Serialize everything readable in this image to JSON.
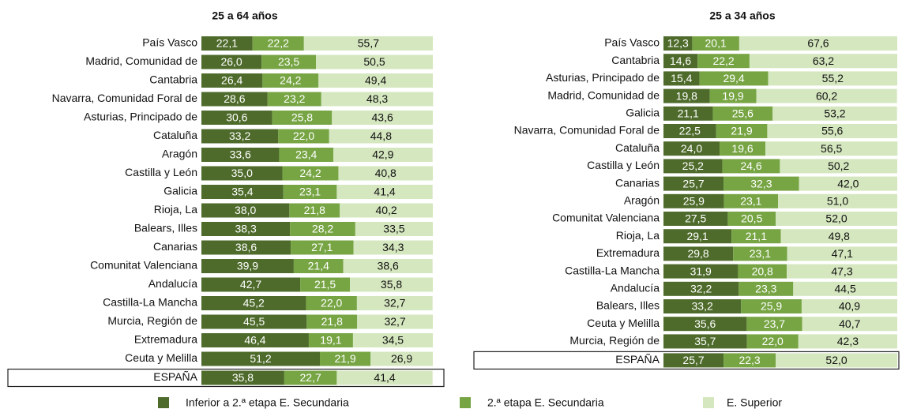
{
  "chart_data": [
    {
      "type": "bar",
      "orientation": "horizontal",
      "stacked": true,
      "title": "25 a 64 años",
      "xlim": [
        0,
        100
      ],
      "categories": [
        "País Vasco",
        "Madrid, Comunidad de",
        "Cantabria",
        "Navarra, Comunidad Foral de",
        "Asturias, Principado de",
        "Cataluña",
        "Aragón",
        "Castilla y León",
        "Galicia",
        "Rioja, La",
        "Balears, Illes",
        "Canarias",
        "Comunitat Valenciana",
        "Andalucía",
        "Castilla-La Mancha",
        "Murcia, Región de",
        "Extremadura",
        "Ceuta y Melilla",
        "ESPAÑA"
      ],
      "series": [
        {
          "name": "Inferior a  2.ª etapa E. Secundaria",
          "color": "#4e6b2b",
          "values": [
            22.1,
            26.0,
            26.4,
            28.6,
            30.6,
            33.2,
            33.6,
            35.0,
            35.4,
            38.0,
            38.3,
            38.6,
            39.9,
            42.7,
            45.2,
            45.5,
            46.4,
            51.2,
            35.8
          ],
          "value_labels": [
            "22,1",
            "26,0",
            "26,4",
            "28,6",
            "30,6",
            "33,2",
            "33,6",
            "35,0",
            "35,4",
            "38,0",
            "38,3",
            "38,6",
            "39,9",
            "42,7",
            "45,2",
            "45,5",
            "46,4",
            "51,2",
            "35,8"
          ]
        },
        {
          "name": "2.ª etapa E. Secundaria",
          "color": "#77a544",
          "values": [
            22.2,
            23.5,
            24.2,
            23.2,
            25.8,
            22.0,
            23.4,
            24.2,
            23.1,
            21.8,
            28.2,
            27.1,
            21.4,
            21.5,
            22.0,
            21.8,
            19.1,
            21.9,
            22.7
          ],
          "value_labels": [
            "22,2",
            "23,5",
            "24,2",
            "23,2",
            "25,8",
            "22,0",
            "23,4",
            "24,2",
            "23,1",
            "21,8",
            "28,2",
            "27,1",
            "21,4",
            "21,5",
            "22,0",
            "21,8",
            "19,1",
            "21,9",
            "22,7"
          ]
        },
        {
          "name": "E. Superior",
          "color": "#d5e7bf",
          "values": [
            55.7,
            50.5,
            49.4,
            48.3,
            43.6,
            44.8,
            42.9,
            40.8,
            41.4,
            40.2,
            33.5,
            34.3,
            38.6,
            35.8,
            32.7,
            32.7,
            34.5,
            26.9,
            41.4
          ],
          "value_labels": [
            "55,7",
            "50,5",
            "49,4",
            "48,3",
            "43,6",
            "44,8",
            "42,9",
            "40,8",
            "41,4",
            "40,2",
            "33,5",
            "34,3",
            "38,6",
            "35,8",
            "32,7",
            "32,7",
            "34,5",
            "26,9",
            "41,4"
          ]
        }
      ]
    },
    {
      "type": "bar",
      "orientation": "horizontal",
      "stacked": true,
      "title": "25 a 34 años",
      "xlim": [
        0,
        100
      ],
      "categories": [
        "País Vasco",
        "Cantabria",
        "Asturias, Principado de",
        "Madrid, Comunidad de",
        "Galicia",
        "Navarra, Comunidad Foral de",
        "Cataluña",
        "Castilla y León",
        "Canarias",
        "Aragón",
        "Comunitat Valenciana",
        "Rioja, La",
        "Extremadura",
        "Castilla-La Mancha",
        "Andalucía",
        "Balears, Illes",
        "Ceuta y Melilla",
        "Murcia, Región de",
        "ESPAÑA"
      ],
      "series": [
        {
          "color": "#4e6b2b",
          "values": [
            12.3,
            14.6,
            15.4,
            19.8,
            21.1,
            22.5,
            24.0,
            25.2,
            25.7,
            25.9,
            27.5,
            29.1,
            29.8,
            31.9,
            32.2,
            33.2,
            35.6,
            35.7,
            25.7
          ],
          "value_labels": [
            "12,3",
            "14,6",
            "15,4",
            "19,8",
            "21,1",
            "22,5",
            "24,0",
            "25,2",
            "25,7",
            "25,9",
            "27,5",
            "29,1",
            "29,8",
            "31,9",
            "32,2",
            "33,2",
            "35,6",
            "35,7",
            "25,7"
          ]
        },
        {
          "color": "#77a544",
          "values": [
            20.1,
            22.2,
            29.4,
            19.9,
            25.6,
            21.9,
            19.6,
            24.6,
            32.3,
            23.1,
            20.5,
            21.1,
            23.1,
            20.8,
            23.3,
            25.9,
            23.7,
            22.0,
            22.3
          ],
          "value_labels": [
            "20,1",
            "22,2",
            "29,4",
            "19,9",
            "25,6",
            "21,9",
            "19,6",
            "24,6",
            "32,3",
            "23,1",
            "20,5",
            "21,1",
            "23,1",
            "20,8",
            "23,3",
            "25,9",
            "23,7",
            "22,0",
            "22,3"
          ]
        },
        {
          "color": "#d5e7bf",
          "values": [
            67.6,
            63.2,
            55.2,
            60.2,
            53.2,
            55.6,
            56.5,
            50.2,
            42.0,
            51.0,
            52.0,
            49.8,
            47.1,
            47.3,
            44.5,
            40.9,
            40.7,
            42.3,
            52.0
          ],
          "value_labels": [
            "67,6",
            "63,2",
            "55,2",
            "60,2",
            "53,2",
            "55,6",
            "56,5",
            "50,2",
            "42,0",
            "51,0",
            "52,0",
            "49,8",
            "47,1",
            "47,3",
            "44,5",
            "40,9",
            "40,7",
            "42,3",
            "52,0"
          ]
        }
      ]
    }
  ]
}
